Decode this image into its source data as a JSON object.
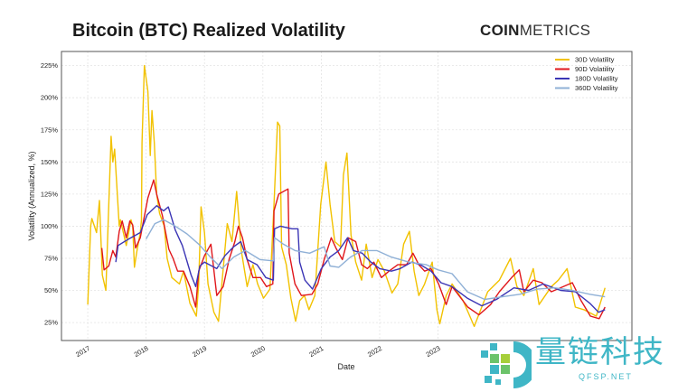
{
  "header": {
    "title": "Bitcoin (BTC) Realized Volatility",
    "brand_bold": "COIN",
    "brand_light": "METRICS"
  },
  "watermark": {
    "text": "量链科技",
    "url": "QFSP.NET"
  },
  "chart_data": {
    "type": "line",
    "title": "Bitcoin (BTC) Realized Volatility",
    "xlabel": "Date",
    "ylabel": "Volatility (Annualized, %)",
    "xlim": [
      2016.55,
      2026.32
    ],
    "ylim": [
      11,
      236
    ],
    "x_ticks": [
      "2017",
      "2018",
      "2019",
      "2020",
      "2021",
      "2022",
      "2023"
    ],
    "y_ticks": [
      25,
      50,
      75,
      100,
      125,
      150,
      175,
      200,
      225
    ],
    "y_tick_format": "%",
    "grid": true,
    "legend_position": "top-right",
    "series": [
      {
        "name": "30D Volatility",
        "color": "#f2c200",
        "x": [
          2017.0,
          2017.05,
          2017.07,
          2017.15,
          2017.2,
          2017.25,
          2017.31,
          2017.4,
          2017.43,
          2017.46,
          2017.54,
          2017.56,
          2017.66,
          2017.74,
          2017.77,
          2017.8,
          2017.84,
          2017.9,
          2017.92,
          2017.93,
          2017.97,
          2018.03,
          2018.07,
          2018.1,
          2018.14,
          2018.18,
          2018.23,
          2018.31,
          2018.36,
          2018.44,
          2018.57,
          2018.64,
          2018.75,
          2018.86,
          2018.9,
          2018.94,
          2019.0,
          2019.06,
          2019.16,
          2019.24,
          2019.39,
          2019.47,
          2019.55,
          2019.63,
          2019.73,
          2019.83,
          2019.91,
          2020.01,
          2020.12,
          2020.19,
          2020.25,
          2020.29,
          2020.32,
          2020.4,
          2020.48,
          2020.56,
          2020.63,
          2020.71,
          2020.79,
          2020.89,
          2020.99,
          2021.08,
          2021.15,
          2021.23,
          2021.33,
          2021.38,
          2021.44,
          2021.51,
          2021.59,
          2021.69,
          2021.77,
          2021.87,
          2021.97,
          2022.08,
          2022.21,
          2022.31,
          2022.41,
          2022.51,
          2022.59,
          2022.67,
          2022.77,
          2022.9,
          2022.98,
          2023.03,
          2023.14,
          2023.24,
          2023.43,
          2023.62,
          2023.85,
          2024.05,
          2024.24,
          2024.35,
          2024.47,
          2024.63,
          2024.73,
          2024.94,
          2025.06,
          2025.21,
          2025.35,
          2025.5,
          2025.71,
          2025.86
        ],
        "y": [
          39,
          100,
          106,
          95,
          120,
          62,
          50,
          170,
          150,
          160,
          100,
          105,
          85,
          105,
          100,
          68,
          80,
          95,
          105,
          165,
          225,
          205,
          155,
          190,
          165,
          125,
          110,
          100,
          75,
          60,
          55,
          65,
          40,
          30,
          55,
          115,
          95,
          55,
          33,
          26,
          102,
          88,
          127,
          81,
          53,
          70,
          55,
          44,
          51,
          117,
          181,
          178,
          84,
          70,
          44,
          26,
          42,
          46,
          35,
          46,
          117,
          150,
          117,
          88,
          84,
          140,
          157,
          93,
          72,
          58,
          86,
          60,
          74,
          65,
          48,
          55,
          86,
          96,
          65,
          46,
          55,
          72,
          35,
          24,
          46,
          55,
          42,
          22,
          49,
          58,
          75,
          53,
          46,
          67,
          39,
          53,
          58,
          67,
          37,
          35,
          30,
          52
        ]
      },
      {
        "name": "90D Volatility",
        "color": "#e0161b",
        "x": [
          2017.24,
          2017.28,
          2017.36,
          2017.43,
          2017.48,
          2017.54,
          2017.59,
          2017.66,
          2017.72,
          2017.77,
          2017.82,
          2017.9,
          2017.95,
          2018.03,
          2018.13,
          2018.18,
          2018.28,
          2018.39,
          2018.46,
          2018.54,
          2018.64,
          2018.75,
          2018.85,
          2018.9,
          2019.0,
          2019.11,
          2019.21,
          2019.32,
          2019.42,
          2019.52,
          2019.58,
          2019.65,
          2019.73,
          2019.83,
          2019.96,
          2020.06,
          2020.17,
          2020.19,
          2020.27,
          2020.43,
          2020.45,
          2020.55,
          2020.66,
          2020.84,
          2020.94,
          2021.05,
          2021.17,
          2021.25,
          2021.36,
          2021.46,
          2021.59,
          2021.69,
          2021.79,
          2021.9,
          2022.03,
          2022.16,
          2022.31,
          2022.46,
          2022.57,
          2022.67,
          2022.77,
          2022.88,
          2023.01,
          2023.14,
          2023.24,
          2023.51,
          2023.7,
          2023.9,
          2024.05,
          2024.26,
          2024.39,
          2024.47,
          2024.63,
          2024.78,
          2024.94,
          2025.3,
          2025.45,
          2025.61,
          2025.76,
          2025.86
        ],
        "y": [
          83,
          66,
          69,
          81,
          76,
          96,
          104,
          91,
          104,
          101,
          83,
          91,
          103,
          122,
          136,
          125,
          108,
          82,
          75,
          65,
          65,
          53,
          37,
          65,
          77,
          86,
          46,
          53,
          74,
          88,
          100,
          91,
          74,
          60,
          60,
          53,
          55,
          112,
          125,
          129,
          79,
          55,
          46,
          47,
          55,
          74,
          91,
          83,
          74,
          91,
          88,
          70,
          67,
          72,
          60,
          65,
          70,
          70,
          79,
          70,
          65,
          67,
          55,
          39,
          53,
          37,
          31,
          39,
          49,
          60,
          66,
          49,
          58,
          56,
          49,
          56,
          42,
          30,
          28,
          37
        ]
      },
      {
        "name": "180D Volatility",
        "color": "#3b35b5",
        "x": [
          2017.48,
          2017.52,
          2017.7,
          2017.9,
          2018.02,
          2018.18,
          2018.3,
          2018.38,
          2018.5,
          2018.62,
          2018.77,
          2018.85,
          2018.92,
          2019.0,
          2019.21,
          2019.35,
          2019.5,
          2019.62,
          2019.73,
          2019.9,
          2020.05,
          2020.18,
          2020.2,
          2020.3,
          2020.5,
          2020.6,
          2020.63,
          2020.72,
          2020.85,
          2021.0,
          2021.15,
          2021.3,
          2021.45,
          2021.55,
          2021.7,
          2021.85,
          2022.0,
          2022.2,
          2022.35,
          2022.55,
          2022.7,
          2022.88,
          2023.05,
          2023.24,
          2023.5,
          2023.75,
          2024.0,
          2024.3,
          2024.55,
          2024.8,
          2025.1,
          2025.35,
          2025.6,
          2025.75,
          2025.86
        ],
        "y": [
          72,
          85,
          90,
          95,
          109,
          116,
          112,
          115,
          97,
          85,
          62,
          53,
          69,
          72,
          67,
          77,
          84,
          88,
          74,
          70,
          60,
          58,
          98,
          100,
          98,
          98,
          72,
          58,
          51,
          67,
          76,
          81,
          91,
          81,
          79,
          72,
          67,
          65,
          67,
          72,
          70,
          65,
          56,
          53,
          44,
          38,
          43,
          52,
          50,
          55,
          50,
          49,
          40,
          33,
          35
        ]
      },
      {
        "name": "360D Volatility",
        "color": "#8fb0d6",
        "x": [
          2018.0,
          2018.15,
          2018.3,
          2018.5,
          2018.7,
          2018.9,
          2019.1,
          2019.3,
          2019.5,
          2019.7,
          2019.95,
          2020.18,
          2020.2,
          2020.35,
          2020.55,
          2020.8,
          2021.05,
          2021.15,
          2021.3,
          2021.5,
          2021.7,
          2021.95,
          2022.2,
          2022.5,
          2022.8,
          2023.0,
          2023.24,
          2023.5,
          2023.8,
          2024.1,
          2024.4,
          2024.7,
          2025.0,
          2025.3,
          2025.6,
          2025.86
        ],
        "y": [
          90,
          102,
          105,
          100,
          94,
          86,
          76,
          67,
          76,
          81,
          74,
          73,
          91,
          86,
          81,
          79,
          84,
          69,
          68,
          76,
          81,
          81,
          76,
          72,
          70,
          66,
          63,
          49,
          43,
          45,
          47,
          51,
          52,
          50,
          47,
          45
        ]
      }
    ]
  }
}
